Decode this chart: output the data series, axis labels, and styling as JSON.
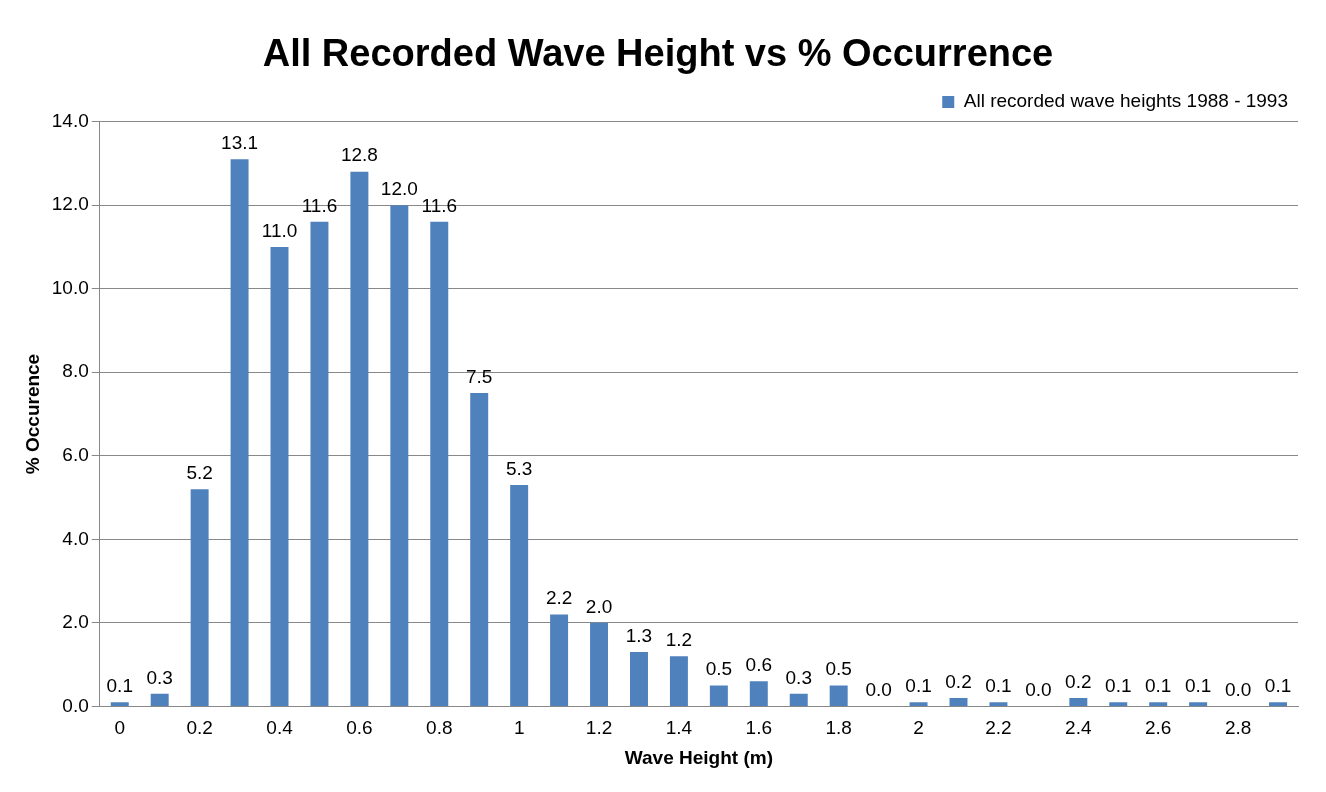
{
  "chart_data": {
    "type": "bar",
    "title": "All Recorded Wave Height vs % Occurrence",
    "xlabel": "Wave Height (m)",
    "ylabel": "% Occurence",
    "categories": [
      "0",
      null,
      "0.2",
      null,
      "0.4",
      null,
      "0.6",
      null,
      "0.8",
      null,
      "1",
      null,
      "1.2",
      null,
      "1.4",
      null,
      "1.6",
      null,
      "1.8",
      null,
      "2",
      null,
      "2.2",
      null,
      "2.4",
      null,
      "2.6",
      null,
      "2.8",
      null
    ],
    "series": [
      {
        "name": "All recorded wave heights 1988 - 1993",
        "color": "#4f81bd",
        "values": [
          0.1,
          0.3,
          5.2,
          13.1,
          11.0,
          11.6,
          12.8,
          12.0,
          11.6,
          7.5,
          5.3,
          2.2,
          2.0,
          1.3,
          1.2,
          0.5,
          0.6,
          0.3,
          0.5,
          0.0,
          0.1,
          0.2,
          0.1,
          0.0,
          0.2,
          0.1,
          0.1,
          0.1,
          0.0,
          0.1
        ],
        "value_labels": [
          "0.1",
          "0.3",
          "5.2",
          "13.1",
          "11.0",
          "11.6",
          "12.8",
          "12.0",
          "11.6",
          "7.5",
          "5.3",
          "2.2",
          "2.0",
          "1.3",
          "1.2",
          "0.5",
          "0.6",
          "0.3",
          "0.5",
          "0.0",
          "0.1",
          "0.2",
          "0.1",
          "0.0",
          "0.2",
          "0.1",
          "0.1",
          "0.1",
          "0.0",
          "0.1"
        ]
      }
    ],
    "ylim": [
      0,
      14
    ],
    "yticks": [
      {
        "value": 0,
        "label": "0.0"
      },
      {
        "value": 2,
        "label": "2.0"
      },
      {
        "value": 4,
        "label": "4.0"
      },
      {
        "value": 6,
        "label": "6.0"
      },
      {
        "value": 8,
        "label": "8.0"
      },
      {
        "value": 10,
        "label": "10.0"
      },
      {
        "value": 12,
        "label": "12.0"
      },
      {
        "value": 14,
        "label": "14.0"
      }
    ],
    "grid": "y",
    "legend": "top right"
  }
}
